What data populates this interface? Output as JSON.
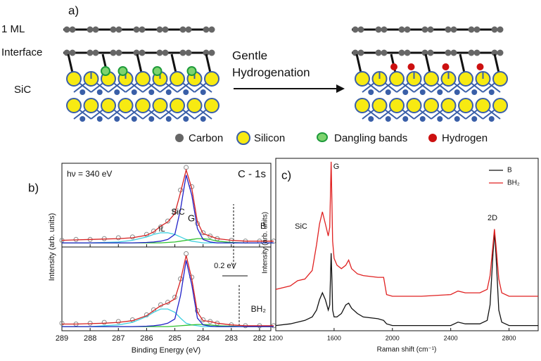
{
  "diagram": {
    "panel_label": "a)",
    "labels": {
      "ml": "1 ML",
      "interface": "Interface",
      "sic": "SiC"
    },
    "arrow_text": [
      "Gentle",
      "Hydrogenation"
    ],
    "legend": [
      "Carbon",
      "Silicon",
      "Dangling bands",
      "Hydrogen"
    ]
  },
  "chart_data": [
    {
      "type": "line",
      "panel_label": "b)",
      "ylabel": "Intensity (arb. units)",
      "x": [
        289,
        288.5,
        288,
        287.5,
        287,
        286.5,
        286,
        285.75,
        285.5,
        285.25,
        285,
        284.8,
        284.6,
        284.4,
        284.2,
        284,
        283.75,
        283.5,
        283,
        282.5,
        282,
        281.5
      ],
      "xlim": [
        289,
        281.6
      ],
      "ylim": [
        0,
        100
      ],
      "xticks": [
        289,
        288,
        287,
        286,
        285,
        284,
        283,
        282
      ],
      "xtick_labels": false,
      "annotations": [
        {
          "text": "hν = 340 eV",
          "color": "#111111"
        },
        {
          "text": "C - 1s",
          "color": "#111111"
        },
        {
          "text": "G",
          "color": "#2020c8"
        },
        {
          "text": "SiC",
          "color": "#30c030"
        },
        {
          "text": "IL",
          "color": "#aaaaaa"
        },
        {
          "text": "B",
          "color": "#111111"
        }
      ],
      "series": [
        {
          "style": "markers",
          "color": "#888888",
          "values": [
            8,
            9,
            9,
            10,
            11,
            12,
            15,
            19,
            24,
            31,
            42,
            68,
            95,
            72,
            28,
            17,
            13,
            10,
            8,
            7,
            7,
            7
          ]
        },
        {
          "style": "line",
          "color": "#40d0e0",
          "values": [
            5,
            5,
            5,
            5.5,
            6,
            8,
            12,
            15,
            17,
            17,
            15,
            12,
            9,
            7,
            6,
            5,
            5,
            5,
            5,
            5,
            5,
            5
          ]
        },
        {
          "style": "line",
          "color": "#30c030",
          "values": [
            5,
            5,
            5,
            5,
            5,
            5,
            5,
            5,
            5,
            5.5,
            6,
            7,
            8,
            9,
            10,
            10,
            9,
            7,
            5.5,
            5,
            5,
            5
          ]
        },
        {
          "style": "line",
          "color": "#2020c8",
          "values": [
            5,
            5,
            5,
            5,
            5,
            5,
            5.5,
            6,
            7,
            9,
            15,
            45,
            86,
            62,
            22,
            9,
            6,
            5,
            5,
            5,
            5,
            5
          ]
        },
        {
          "style": "line",
          "color": "#d62020",
          "values": [
            8,
            8.5,
            9,
            9.5,
            10,
            11,
            14,
            18,
            25,
            30,
            40,
            65,
            92,
            70,
            30,
            16,
            13,
            10,
            8,
            7,
            7,
            7
          ]
        }
      ]
    },
    {
      "type": "line",
      "xlabel": "Binding Energy (eV)",
      "x": [
        289,
        288.5,
        288,
        287.5,
        287,
        286.5,
        286,
        285.75,
        285.5,
        285.25,
        285,
        284.8,
        284.6,
        284.4,
        284.2,
        284,
        283.75,
        283.5,
        283,
        282.5,
        282,
        281.5
      ],
      "xlim": [
        289,
        281.6
      ],
      "ylim": [
        0,
        100
      ],
      "xticks": [
        289,
        288,
        287,
        286,
        285,
        284,
        283,
        282
      ],
      "xtick_labels": true,
      "annotations": [
        {
          "text": "0.2 eV",
          "color": "#111111"
        },
        {
          "text": "BH₂",
          "color": "#111111"
        }
      ],
      "series": [
        {
          "style": "markers",
          "color": "#888888",
          "values": [
            9,
            8,
            9,
            10,
            11,
            13,
            19,
            25,
            31,
            34,
            40,
            62,
            92,
            64,
            24,
            13,
            11,
            9,
            7,
            6,
            6,
            6
          ]
        },
        {
          "style": "line",
          "color": "#40d0e0",
          "values": [
            5,
            5,
            5,
            6,
            7,
            10,
            17,
            22,
            26,
            26,
            22,
            15,
            9,
            7,
            6,
            5,
            5,
            5,
            5,
            5,
            5,
            5
          ]
        },
        {
          "style": "line",
          "color": "#30c030",
          "values": [
            5,
            5,
            5,
            5,
            5,
            5,
            5,
            5,
            5,
            5,
            5.5,
            6,
            6.5,
            7,
            7.5,
            7.5,
            7,
            6,
            5.5,
            5,
            5,
            5
          ]
        },
        {
          "style": "line",
          "color": "#2020c8",
          "values": [
            5,
            5,
            5,
            5,
            5,
            5,
            5.5,
            6,
            7,
            9,
            14,
            42,
            84,
            55,
            15,
            7,
            5.5,
            5,
            5,
            5,
            5,
            5
          ]
        },
        {
          "style": "line",
          "color": "#d62020",
          "values": [
            8,
            8,
            8.5,
            9,
            10,
            12,
            18,
            24,
            30,
            33,
            38,
            60,
            90,
            62,
            22,
            12,
            11,
            9,
            7,
            6,
            6,
            6
          ]
        }
      ]
    },
    {
      "type": "line",
      "panel_label": "c)",
      "xlabel": "Raman shift (cm⁻¹)",
      "ylabel": "Intensity (arb. units)",
      "x": [
        1200,
        1300,
        1350,
        1400,
        1450,
        1480,
        1500,
        1520,
        1540,
        1560,
        1570,
        1580,
        1585,
        1590,
        1600,
        1620,
        1650,
        1680,
        1700,
        1720,
        1760,
        1800,
        1900,
        1940,
        1960,
        2000,
        2200,
        2400,
        2450,
        2500,
        2600,
        2650,
        2670,
        2690,
        2700,
        2710,
        2730,
        2750,
        2800,
        2900,
        3000
      ],
      "xlim": [
        1200,
        3000
      ],
      "ylim": [
        0,
        100
      ],
      "xticks": [
        1200,
        1600,
        2000,
        2400,
        2800
      ],
      "xtick_labels": true,
      "legend": "top-right",
      "annotations": [
        {
          "text": "SiC",
          "color": "#2020c8"
        },
        {
          "text": "G",
          "color": "#2020c8"
        },
        {
          "text": "2D",
          "color": "#2020c8"
        }
      ],
      "series": [
        {
          "name": "B",
          "style": "line",
          "color": "#111111",
          "values": [
            3,
            4,
            5,
            6,
            8,
            12,
            18,
            22,
            18,
            12,
            15,
            45,
            30,
            12,
            8,
            8,
            10,
            15,
            16,
            13,
            10,
            8,
            7,
            6,
            4,
            3,
            3,
            3,
            5,
            4,
            4,
            6,
            15,
            45,
            57,
            45,
            12,
            5,
            3,
            3,
            3
          ]
        },
        {
          "name": "BH₂",
          "style": "line",
          "color": "#e02020",
          "values": [
            24,
            26,
            29,
            30,
            35,
            50,
            62,
            69,
            62,
            55,
            60,
            98,
            75,
            52,
            42,
            38,
            36,
            38,
            41,
            36,
            33,
            32,
            31,
            31,
            21,
            20,
            20,
            21,
            23,
            22,
            22,
            24,
            32,
            50,
            59,
            50,
            30,
            22,
            20,
            20,
            20
          ]
        }
      ]
    }
  ]
}
